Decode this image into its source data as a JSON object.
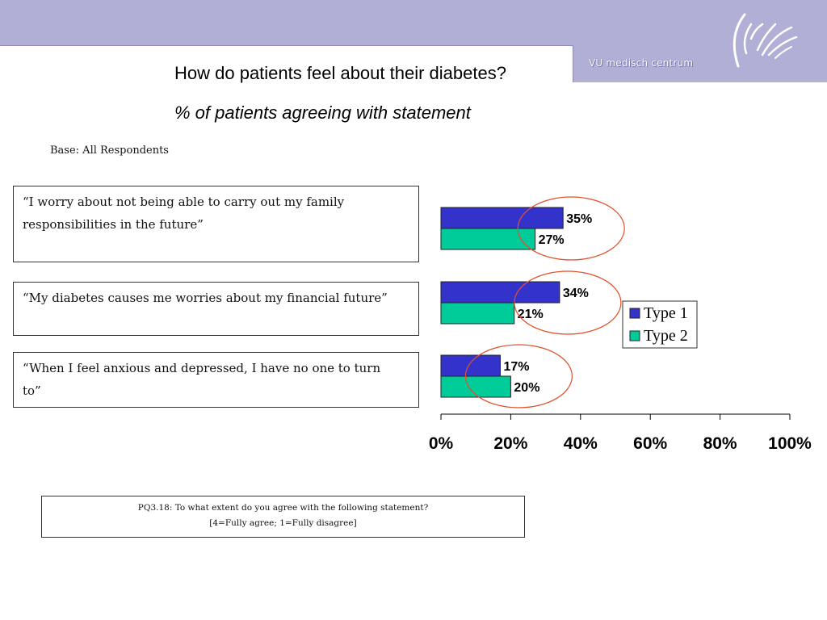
{
  "header": {
    "logo_text": "VU medisch centrum",
    "title": "How do patients feel about their diabetes?",
    "subtitle": "% of patients agreeing with statement",
    "base_note": "Base: All Respondents"
  },
  "statements": [
    "“I worry about not being able to carry out my family responsibilities in the future”",
    "“My diabetes causes me worries about my financial future”",
    "“When I feel anxious and depressed, I have no one to turn to”"
  ],
  "chart_data": {
    "type": "bar",
    "orientation": "horizontal",
    "categories": [
      "“I worry about not being able to carry out my family responsibilities in the future”",
      "“My diabetes causes me worries about my financial future”",
      "“When I feel anxious and depressed, I have no one to turn to”"
    ],
    "series": [
      {
        "name": "Type 1",
        "values": [
          35,
          34,
          17
        ],
        "labels": [
          "35%",
          "34%",
          "17%"
        ],
        "color": "#3333cc"
      },
      {
        "name": "Type 2",
        "values": [
          27,
          21,
          20
        ],
        "labels": [
          "27%",
          "21%",
          "20%"
        ],
        "color": "#00cc99"
      }
    ],
    "xlim": [
      0,
      100
    ],
    "x_ticks": [
      0,
      20,
      40,
      60,
      80,
      100
    ],
    "x_tick_labels": [
      "0%",
      "20%",
      "40%",
      "60%",
      "80%",
      "100%"
    ],
    "grid": false,
    "legend_position": "right",
    "highlight_color": "#e0502a",
    "xlabel": "",
    "ylabel": ""
  },
  "footnote": {
    "line1": "PQ3.18: To what extent do you agree with the following statement?",
    "line2": "[4=Fully agree; 1=Fully disagree]"
  }
}
